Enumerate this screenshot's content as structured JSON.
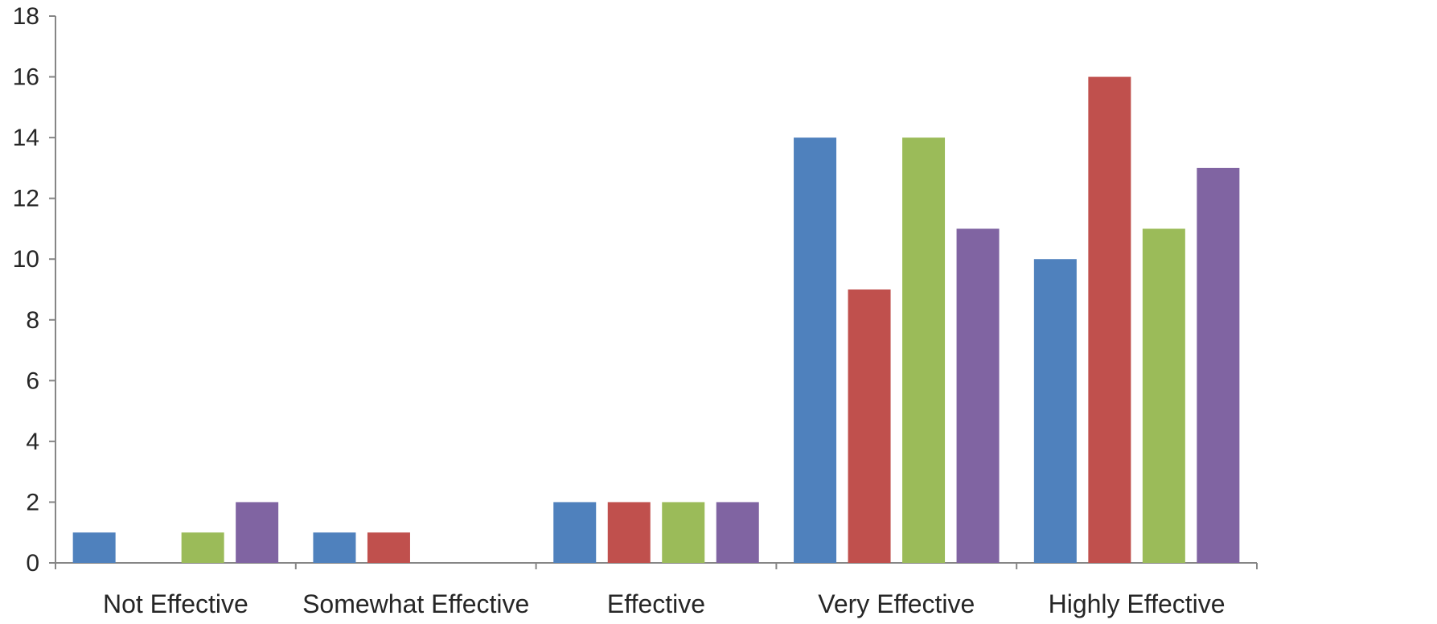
{
  "chart_data": {
    "type": "bar",
    "categories": [
      "Not Effective",
      "Somewhat Effective",
      "Effective",
      "Very Effective",
      "Highly Effective"
    ],
    "series": [
      {
        "values": [
          1,
          1,
          2,
          14,
          10
        ],
        "color": "#4f81bd"
      },
      {
        "values": [
          0,
          1,
          2,
          9,
          16
        ],
        "color": "#c0504d"
      },
      {
        "values": [
          1,
          0,
          2,
          14,
          11
        ],
        "color": "#9bbb59"
      },
      {
        "values": [
          2,
          0,
          2,
          11,
          13
        ],
        "color": "#8064a2"
      }
    ],
    "ylim": [
      0,
      18
    ],
    "yticks": [
      0,
      2,
      4,
      6,
      8,
      10,
      12,
      14,
      16,
      18
    ],
    "grid": false,
    "legend": "none",
    "axis_color": "#868686"
  }
}
